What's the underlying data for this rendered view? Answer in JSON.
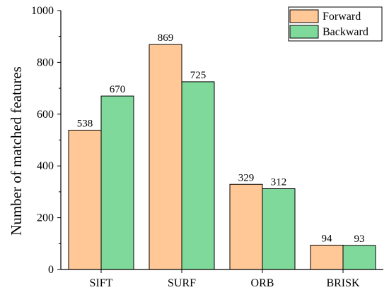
{
  "chart_data": {
    "type": "bar",
    "categories": [
      "SIFT",
      "SURF",
      "ORB",
      "BRISK"
    ],
    "series": [
      {
        "name": "Forward",
        "values": [
          538,
          869,
          329,
          94
        ],
        "color": "#FFC896"
      },
      {
        "name": "Backward",
        "values": [
          670,
          725,
          312,
          93
        ],
        "color": "#7FD99A"
      }
    ],
    "xlabel": "",
    "ylabel": "Number of matched features",
    "ylim": [
      0,
      1000
    ],
    "yticks": [
      0,
      200,
      400,
      600,
      800,
      1000
    ],
    "legend_position": "top-right",
    "grid": false,
    "data_labels": true
  }
}
